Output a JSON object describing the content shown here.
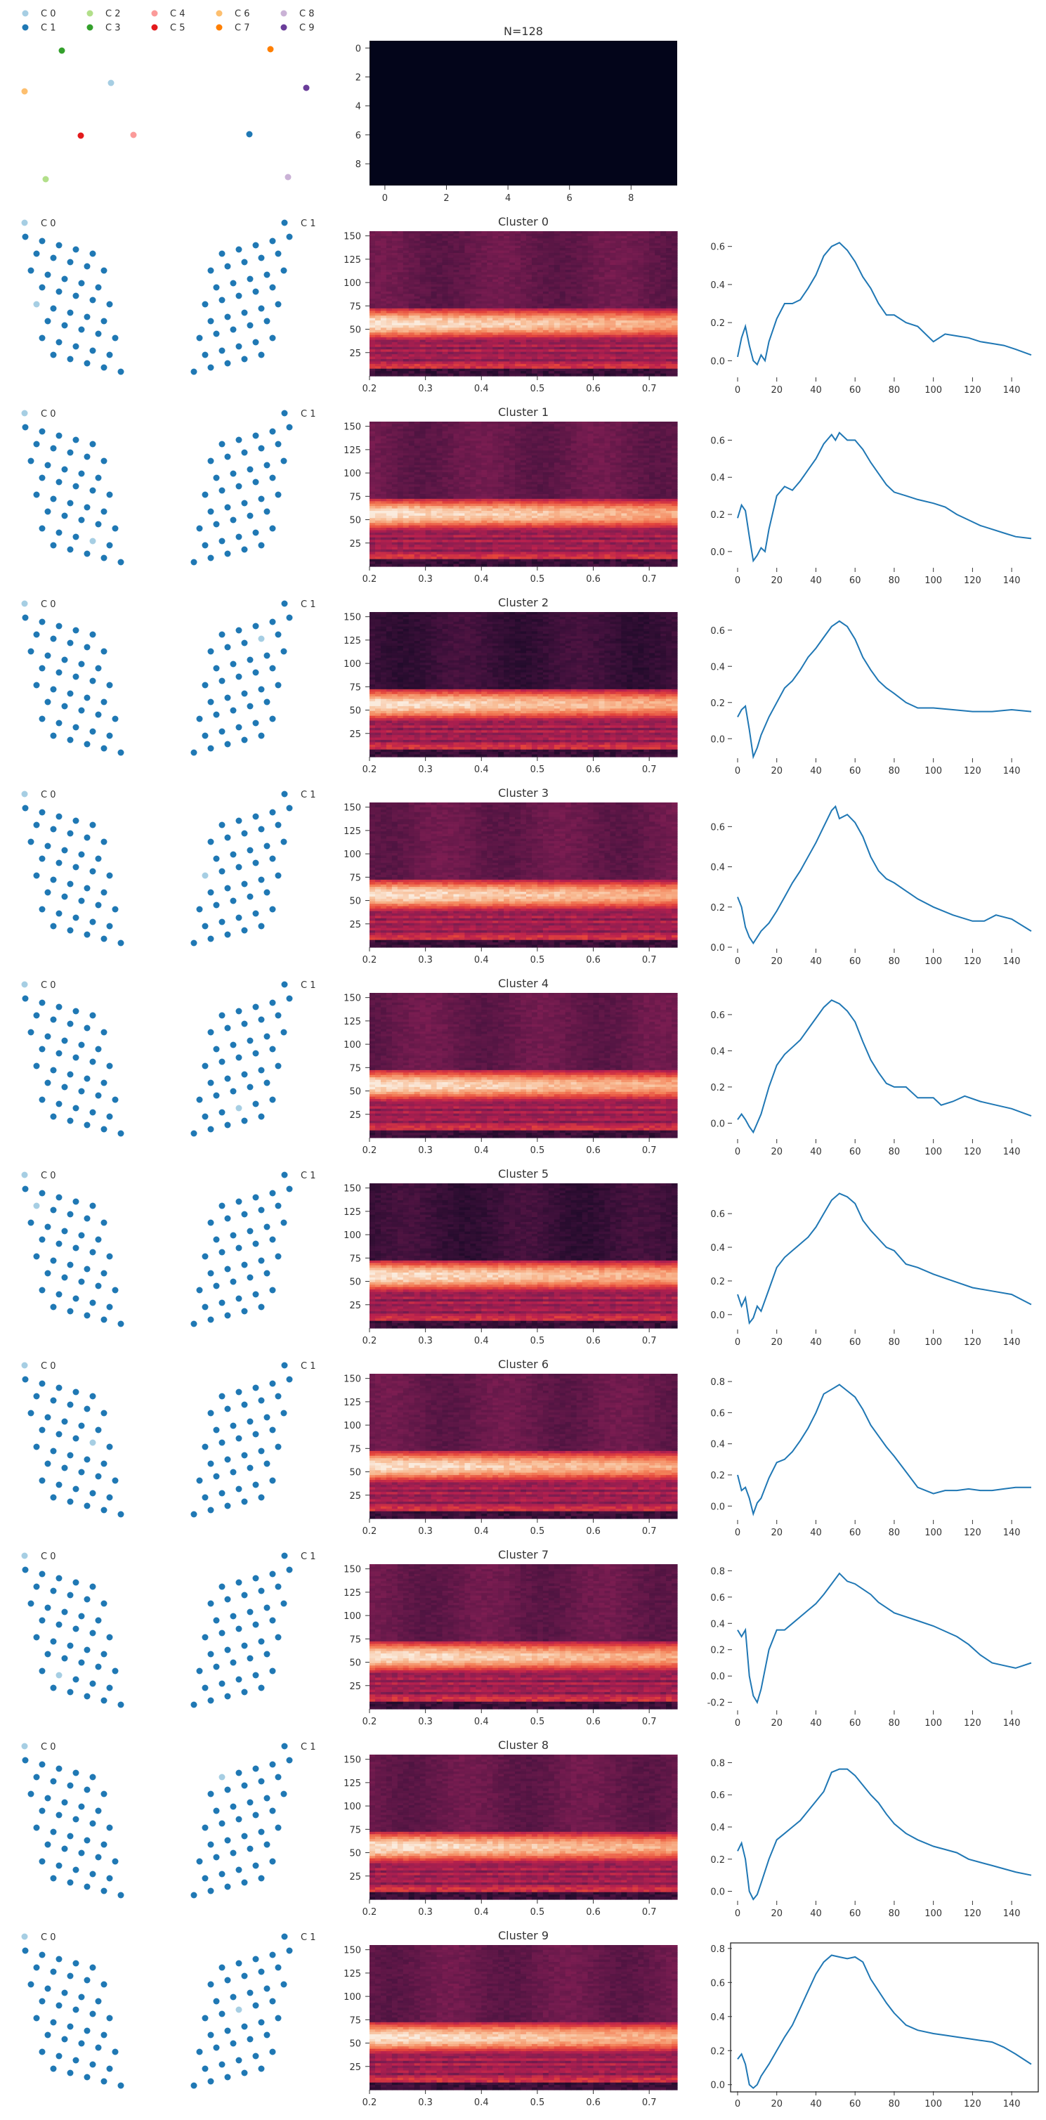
{
  "figure": {
    "legend": {
      "entries": [
        "C 0",
        "C 1",
        "C 2",
        "C 3",
        "C 4",
        "C 5",
        "C 6",
        "C 7",
        "C 8",
        "C 9"
      ],
      "colors": [
        "#a6cee3",
        "#1f78b4",
        "#b2df8a",
        "#33a02c",
        "#fb9a99",
        "#e31a1c",
        "#fdbf6f",
        "#ff7f00",
        "#cab2d6",
        "#6a3d9a"
      ],
      "placement": "top-left"
    },
    "cluster_colors": {
      "selected": "#a6cee3",
      "other": "#1f78b4"
    },
    "heatmap_cmap": "rocket",
    "rows": 11
  },
  "chart_data": [
    {
      "type": "heatmap",
      "title": "N=128",
      "xticks": [
        0,
        2,
        4,
        6,
        8
      ],
      "yticks": [
        0,
        2,
        4,
        6,
        8
      ],
      "xlim": [
        0,
        10
      ],
      "ylim": [
        10,
        0
      ],
      "values_uniform": 0.0,
      "grid": false
    },
    {
      "type": "heatmap",
      "title": "Cluster 0",
      "xticks": [
        0.2,
        0.3,
        0.4,
        0.5,
        0.6,
        0.7
      ],
      "yticks": [
        25,
        50,
        75,
        100,
        125,
        150
      ],
      "xlim": [
        0.2,
        0.75
      ],
      "ylim": [
        0,
        155
      ],
      "grid": false,
      "line": {
        "x": [
          0,
          2,
          4,
          6,
          8,
          10,
          12,
          14,
          16,
          20,
          24,
          28,
          32,
          36,
          40,
          44,
          48,
          52,
          56,
          60,
          64,
          68,
          72,
          76,
          80,
          86,
          92,
          100,
          106,
          112,
          118,
          124,
          130,
          136,
          142,
          150
        ],
        "y": [
          0.02,
          0.12,
          0.18,
          0.08,
          0.0,
          -0.02,
          0.03,
          0.0,
          0.1,
          0.22,
          0.3,
          0.3,
          0.32,
          0.38,
          0.45,
          0.55,
          0.6,
          0.62,
          0.58,
          0.52,
          0.44,
          0.38,
          0.3,
          0.24,
          0.24,
          0.2,
          0.18,
          0.1,
          0.14,
          0.13,
          0.12,
          0.1,
          0.09,
          0.08,
          0.06,
          0.03
        ],
        "yticks": [
          0.0,
          0.2,
          0.4,
          0.6
        ],
        "ylim": [
          -0.08,
          0.68
        ],
        "xticks": [
          0,
          20,
          40,
          60,
          80,
          100,
          120,
          140
        ],
        "xlim": [
          0,
          150
        ]
      }
    },
    {
      "type": "heatmap",
      "title": "Cluster 1",
      "xticks": [
        0.2,
        0.3,
        0.4,
        0.5,
        0.6,
        0.7
      ],
      "yticks": [
        25,
        50,
        75,
        100,
        125,
        150
      ],
      "xlim": [
        0.2,
        0.75
      ],
      "ylim": [
        0,
        155
      ],
      "grid": false,
      "line": {
        "x": [
          0,
          2,
          4,
          6,
          8,
          10,
          12,
          14,
          16,
          20,
          24,
          28,
          32,
          36,
          40,
          44,
          48,
          50,
          52,
          56,
          60,
          64,
          68,
          72,
          76,
          80,
          86,
          92,
          100,
          106,
          112,
          118,
          124,
          130,
          136,
          142,
          150
        ],
        "y": [
          0.18,
          0.25,
          0.22,
          0.08,
          -0.05,
          -0.02,
          0.02,
          0.0,
          0.12,
          0.3,
          0.35,
          0.33,
          0.38,
          0.44,
          0.5,
          0.58,
          0.63,
          0.6,
          0.64,
          0.6,
          0.6,
          0.55,
          0.48,
          0.42,
          0.36,
          0.32,
          0.3,
          0.28,
          0.26,
          0.24,
          0.2,
          0.17,
          0.14,
          0.12,
          0.1,
          0.08,
          0.07
        ],
        "yticks": [
          0.0,
          0.2,
          0.4,
          0.6
        ],
        "ylim": [
          -0.08,
          0.7
        ],
        "xticks": [
          0,
          20,
          40,
          60,
          80,
          100,
          120,
          140
        ],
        "xlim": [
          0,
          150
        ]
      }
    },
    {
      "type": "heatmap",
      "title": "Cluster 2",
      "xticks": [
        0.2,
        0.3,
        0.4,
        0.5,
        0.6,
        0.7
      ],
      "yticks": [
        25,
        50,
        75,
        100,
        125,
        150
      ],
      "xlim": [
        0.2,
        0.75
      ],
      "ylim": [
        0,
        155
      ],
      "grid": false,
      "line": {
        "x": [
          0,
          2,
          4,
          6,
          8,
          10,
          12,
          16,
          20,
          24,
          28,
          32,
          36,
          40,
          44,
          48,
          52,
          56,
          60,
          64,
          68,
          72,
          76,
          80,
          86,
          92,
          100,
          110,
          120,
          130,
          140,
          150
        ],
        "y": [
          0.12,
          0.16,
          0.18,
          0.05,
          -0.1,
          -0.05,
          0.02,
          0.12,
          0.2,
          0.28,
          0.32,
          0.38,
          0.45,
          0.5,
          0.56,
          0.62,
          0.65,
          0.62,
          0.55,
          0.45,
          0.38,
          0.32,
          0.28,
          0.25,
          0.2,
          0.17,
          0.17,
          0.16,
          0.15,
          0.15,
          0.16,
          0.15
        ],
        "yticks": [
          0.0,
          0.2,
          0.4,
          0.6
        ],
        "ylim": [
          -0.1,
          0.7
        ],
        "xticks": [
          0,
          20,
          40,
          60,
          80,
          100,
          120,
          140
        ],
        "xlim": [
          0,
          150
        ]
      }
    },
    {
      "type": "heatmap",
      "title": "Cluster 3",
      "xticks": [
        0.2,
        0.3,
        0.4,
        0.5,
        0.6,
        0.7
      ],
      "yticks": [
        25,
        50,
        75,
        100,
        125,
        150
      ],
      "xlim": [
        0.2,
        0.75
      ],
      "ylim": [
        0,
        155
      ],
      "grid": false,
      "line": {
        "x": [
          0,
          2,
          4,
          6,
          8,
          10,
          12,
          16,
          20,
          24,
          28,
          32,
          36,
          40,
          44,
          48,
          50,
          52,
          56,
          60,
          64,
          68,
          72,
          76,
          80,
          86,
          92,
          100,
          110,
          120,
          126,
          132,
          140,
          150
        ],
        "y": [
          0.25,
          0.2,
          0.1,
          0.05,
          0.02,
          0.05,
          0.08,
          0.12,
          0.18,
          0.25,
          0.32,
          0.38,
          0.45,
          0.52,
          0.6,
          0.68,
          0.7,
          0.64,
          0.66,
          0.62,
          0.55,
          0.45,
          0.38,
          0.34,
          0.32,
          0.28,
          0.24,
          0.2,
          0.16,
          0.13,
          0.13,
          0.16,
          0.14,
          0.08
        ],
        "yticks": [
          0.0,
          0.2,
          0.4,
          0.6
        ],
        "ylim": [
          0.0,
          0.72
        ],
        "xticks": [
          0,
          20,
          40,
          60,
          80,
          100,
          120,
          140
        ],
        "xlim": [
          0,
          150
        ]
      }
    },
    {
      "type": "heatmap",
      "title": "Cluster 4",
      "xticks": [
        0.2,
        0.3,
        0.4,
        0.5,
        0.6,
        0.7
      ],
      "yticks": [
        25,
        50,
        75,
        100,
        125,
        150
      ],
      "xlim": [
        0.2,
        0.75
      ],
      "ylim": [
        0,
        155
      ],
      "grid": false,
      "line": {
        "x": [
          0,
          2,
          4,
          6,
          8,
          10,
          12,
          16,
          20,
          24,
          28,
          32,
          36,
          40,
          44,
          48,
          52,
          56,
          60,
          64,
          68,
          72,
          76,
          80,
          86,
          92,
          100,
          104,
          110,
          116,
          124,
          132,
          140,
          150
        ],
        "y": [
          0.02,
          0.05,
          0.02,
          -0.02,
          -0.05,
          0.0,
          0.05,
          0.2,
          0.32,
          0.38,
          0.42,
          0.46,
          0.52,
          0.58,
          0.64,
          0.68,
          0.66,
          0.62,
          0.56,
          0.45,
          0.35,
          0.28,
          0.22,
          0.2,
          0.2,
          0.14,
          0.14,
          0.1,
          0.12,
          0.15,
          0.12,
          0.1,
          0.08,
          0.04
        ],
        "yticks": [
          0.0,
          0.2,
          0.4,
          0.6
        ],
        "ylim": [
          -0.08,
          0.72
        ],
        "xticks": [
          0,
          20,
          40,
          60,
          80,
          100,
          120,
          140
        ],
        "xlim": [
          0,
          150
        ]
      }
    },
    {
      "type": "heatmap",
      "title": "Cluster 5",
      "xticks": [
        0.2,
        0.3,
        0.4,
        0.5,
        0.6,
        0.7
      ],
      "yticks": [
        25,
        50,
        75,
        100,
        125,
        150
      ],
      "xlim": [
        0.2,
        0.75
      ],
      "ylim": [
        0,
        155
      ],
      "grid": false,
      "line": {
        "x": [
          0,
          2,
          4,
          6,
          8,
          10,
          12,
          16,
          20,
          24,
          28,
          32,
          36,
          40,
          44,
          48,
          52,
          56,
          60,
          64,
          68,
          72,
          76,
          80,
          86,
          92,
          100,
          110,
          120,
          130,
          140,
          150
        ],
        "y": [
          0.12,
          0.05,
          0.1,
          -0.05,
          -0.02,
          0.05,
          0.02,
          0.15,
          0.28,
          0.34,
          0.38,
          0.42,
          0.46,
          0.52,
          0.6,
          0.68,
          0.72,
          0.7,
          0.66,
          0.56,
          0.5,
          0.45,
          0.4,
          0.38,
          0.3,
          0.28,
          0.24,
          0.2,
          0.16,
          0.14,
          0.12,
          0.06
        ],
        "yticks": [
          0.0,
          0.2,
          0.4,
          0.6
        ],
        "ylim": [
          -0.08,
          0.78
        ],
        "xticks": [
          0,
          20,
          40,
          60,
          80,
          100,
          120,
          140
        ],
        "xlim": [
          0,
          150
        ]
      }
    },
    {
      "type": "heatmap",
      "title": "Cluster 6",
      "xticks": [
        0.2,
        0.3,
        0.4,
        0.5,
        0.6,
        0.7
      ],
      "yticks": [
        25,
        50,
        75,
        100,
        125,
        150
      ],
      "xlim": [
        0.2,
        0.75
      ],
      "ylim": [
        0,
        155
      ],
      "grid": false,
      "line": {
        "x": [
          0,
          2,
          4,
          6,
          8,
          10,
          12,
          16,
          20,
          24,
          28,
          32,
          36,
          40,
          44,
          48,
          52,
          56,
          60,
          64,
          68,
          72,
          76,
          80,
          86,
          92,
          100,
          106,
          112,
          118,
          124,
          130,
          136,
          142,
          150
        ],
        "y": [
          0.2,
          0.1,
          0.12,
          0.05,
          -0.05,
          0.02,
          0.05,
          0.18,
          0.28,
          0.3,
          0.35,
          0.42,
          0.5,
          0.6,
          0.72,
          0.75,
          0.78,
          0.74,
          0.7,
          0.62,
          0.52,
          0.45,
          0.38,
          0.32,
          0.22,
          0.12,
          0.08,
          0.1,
          0.1,
          0.11,
          0.1,
          0.1,
          0.11,
          0.12,
          0.12
        ],
        "yticks": [
          0.0,
          0.2,
          0.4,
          0.6,
          0.8
        ],
        "ylim": [
          -0.08,
          0.85
        ],
        "xticks": [
          0,
          20,
          40,
          60,
          80,
          100,
          120,
          140
        ],
        "xlim": [
          0,
          150
        ]
      }
    },
    {
      "type": "heatmap",
      "title": "Cluster 7",
      "xticks": [
        0.2,
        0.3,
        0.4,
        0.5,
        0.6,
        0.7
      ],
      "yticks": [
        25,
        50,
        75,
        100,
        125,
        150
      ],
      "xlim": [
        0.2,
        0.75
      ],
      "ylim": [
        0,
        155
      ],
      "grid": false,
      "line": {
        "x": [
          0,
          2,
          4,
          6,
          8,
          10,
          12,
          14,
          16,
          20,
          24,
          28,
          32,
          36,
          40,
          44,
          48,
          52,
          56,
          60,
          64,
          68,
          72,
          76,
          80,
          86,
          92,
          100,
          106,
          112,
          118,
          124,
          130,
          136,
          142,
          150
        ],
        "y": [
          0.35,
          0.3,
          0.35,
          0.0,
          -0.15,
          -0.2,
          -0.1,
          0.05,
          0.2,
          0.35,
          0.35,
          0.4,
          0.45,
          0.5,
          0.55,
          0.62,
          0.7,
          0.78,
          0.72,
          0.7,
          0.66,
          0.62,
          0.56,
          0.52,
          0.48,
          0.45,
          0.42,
          0.38,
          0.34,
          0.3,
          0.24,
          0.16,
          0.1,
          0.08,
          0.06,
          0.1
        ],
        "yticks": [
          -0.2,
          0.0,
          0.2,
          0.4,
          0.6,
          0.8
        ],
        "ylim": [
          -0.25,
          0.85
        ],
        "xticks": [
          0,
          20,
          40,
          60,
          80,
          100,
          120,
          140
        ],
        "xlim": [
          0,
          150
        ]
      }
    },
    {
      "type": "heatmap",
      "title": "Cluster 8",
      "xticks": [
        0.2,
        0.3,
        0.4,
        0.5,
        0.6,
        0.7
      ],
      "yticks": [
        25,
        50,
        75,
        100,
        125,
        150
      ],
      "xlim": [
        0.2,
        0.75
      ],
      "ylim": [
        0,
        155
      ],
      "grid": false,
      "line": {
        "x": [
          0,
          2,
          4,
          6,
          8,
          10,
          12,
          16,
          20,
          24,
          28,
          32,
          36,
          40,
          44,
          48,
          52,
          56,
          60,
          64,
          68,
          72,
          76,
          80,
          86,
          92,
          100,
          106,
          112,
          118,
          124,
          130,
          136,
          142,
          150
        ],
        "y": [
          0.25,
          0.3,
          0.2,
          0.0,
          -0.05,
          -0.02,
          0.05,
          0.2,
          0.32,
          0.36,
          0.4,
          0.44,
          0.5,
          0.56,
          0.62,
          0.74,
          0.76,
          0.76,
          0.72,
          0.66,
          0.6,
          0.55,
          0.48,
          0.42,
          0.36,
          0.32,
          0.28,
          0.26,
          0.24,
          0.2,
          0.18,
          0.16,
          0.14,
          0.12,
          0.1
        ],
        "yticks": [
          0.0,
          0.2,
          0.4,
          0.6,
          0.8
        ],
        "ylim": [
          -0.05,
          0.85
        ],
        "xticks": [
          0,
          20,
          40,
          60,
          80,
          100,
          120,
          140
        ],
        "xlim": [
          0,
          150
        ]
      }
    },
    {
      "type": "heatmap",
      "title": "Cluster 9",
      "xticks": [
        0.2,
        0.3,
        0.4,
        0.5,
        0.6,
        0.7
      ],
      "yticks": [
        25,
        50,
        75,
        100,
        125,
        150
      ],
      "xlim": [
        0.2,
        0.75
      ],
      "ylim": [
        0,
        155
      ],
      "grid": false,
      "line": {
        "x": [
          0,
          2,
          4,
          6,
          8,
          10,
          12,
          16,
          20,
          24,
          28,
          32,
          36,
          40,
          44,
          48,
          52,
          56,
          60,
          64,
          68,
          72,
          76,
          80,
          86,
          92,
          100,
          106,
          112,
          118,
          124,
          130,
          136,
          142,
          150
        ],
        "y": [
          0.15,
          0.18,
          0.12,
          0.0,
          -0.02,
          0.0,
          0.05,
          0.12,
          0.2,
          0.28,
          0.35,
          0.45,
          0.55,
          0.65,
          0.72,
          0.76,
          0.75,
          0.74,
          0.75,
          0.72,
          0.62,
          0.55,
          0.48,
          0.42,
          0.35,
          0.32,
          0.3,
          0.29,
          0.28,
          0.27,
          0.26,
          0.25,
          0.22,
          0.18,
          0.12
        ],
        "yticks": [
          0.0,
          0.2,
          0.4,
          0.6,
          0.8
        ],
        "ylim": [
          -0.03,
          0.82
        ],
        "xticks": [
          0,
          20,
          40,
          60,
          80,
          100,
          120,
          140
        ],
        "xlim": [
          0,
          150
        ],
        "boxed": true
      }
    }
  ]
}
